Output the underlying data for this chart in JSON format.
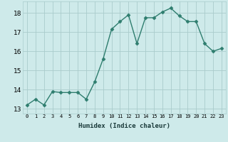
{
  "x": [
    0,
    1,
    2,
    3,
    4,
    5,
    6,
    7,
    8,
    9,
    10,
    11,
    12,
    13,
    14,
    15,
    16,
    17,
    18,
    19,
    20,
    21,
    22,
    23
  ],
  "y": [
    13.2,
    13.5,
    13.2,
    13.9,
    13.85,
    13.85,
    13.85,
    13.5,
    14.4,
    15.6,
    17.15,
    17.55,
    17.9,
    16.4,
    17.75,
    17.75,
    18.05,
    18.25,
    17.85,
    17.55,
    17.55,
    16.4,
    16.0,
    16.15
  ],
  "xlabel": "Humidex (Indice chaleur)",
  "xlim": [
    -0.5,
    23.5
  ],
  "ylim": [
    12.75,
    18.6
  ],
  "yticks": [
    13,
    14,
    15,
    16,
    17,
    18
  ],
  "xticks": [
    0,
    1,
    2,
    3,
    4,
    5,
    6,
    7,
    8,
    9,
    10,
    11,
    12,
    13,
    14,
    15,
    16,
    17,
    18,
    19,
    20,
    21,
    22,
    23
  ],
  "line_color": "#2e7d6e",
  "bg_color": "#ceeaea",
  "grid_color": "#aacccc",
  "markersize": 2.5,
  "linewidth": 1.0
}
